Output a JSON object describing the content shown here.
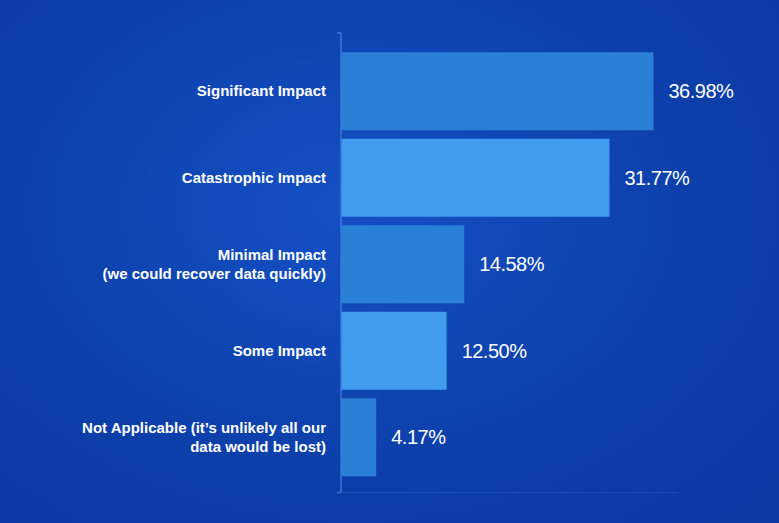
{
  "chart_data": {
    "type": "bar",
    "orientation": "horizontal",
    "categories": [
      "Significant Impact",
      "Catastrophic Impact",
      "Minimal Impact\n(we could recover data quickly)",
      "Some Impact",
      "Not Applicable (it’s unlikely all our\ndata would be lost)"
    ],
    "values": [
      36.98,
      31.77,
      14.58,
      12.5,
      4.17
    ],
    "value_labels": [
      "36.98%",
      "31.77%",
      "14.58%",
      "12.50%",
      "4.17%"
    ],
    "colors": [
      "#2a7fd6",
      "#419bef",
      "#2a7fd6",
      "#419bef",
      "#2a7fd6"
    ],
    "xlim": [
      0,
      40
    ],
    "data_labels": true,
    "tick_labels": false,
    "grid": false
  }
}
